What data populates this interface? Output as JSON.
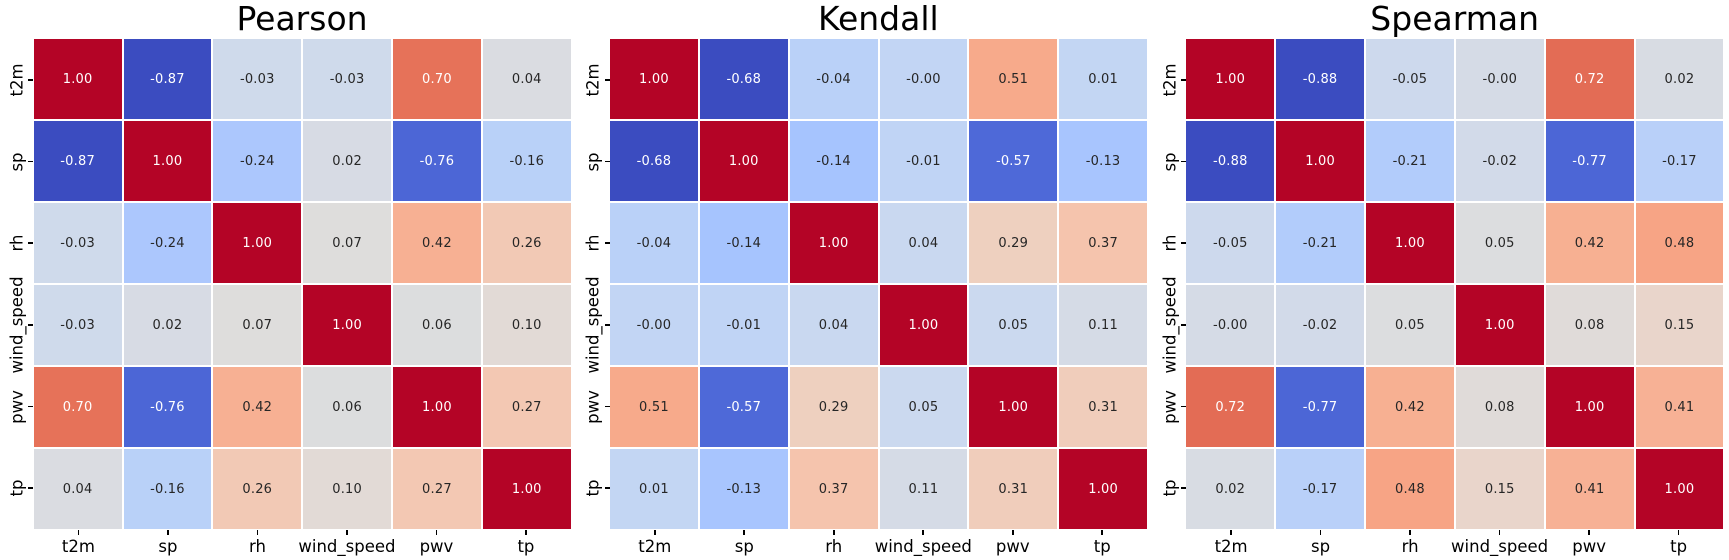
{
  "figure": {
    "background": "#ffffff",
    "colormap": "coolwarm",
    "colormap_min_color": "#3b4cc0",
    "colormap_mid_color": "#dddddd",
    "colormap_max_color": "#b40426",
    "annotation_dark_text": "#262626",
    "annotation_light_text": "#ffffff",
    "gridline_color": "#ffffff",
    "tick_color": "#000000",
    "annotation_format": "two-decimal"
  },
  "chart_data": [
    {
      "type": "heatmap",
      "title": "Pearson",
      "categories": [
        "t2m",
        "sp",
        "rh",
        "wind_speed",
        "pwv",
        "tp"
      ],
      "matrix": [
        [
          "1.00",
          "-0.87",
          "-0.03",
          "-0.03",
          "0.70",
          "0.04"
        ],
        [
          "-0.87",
          "1.00",
          "-0.24",
          "0.02",
          "-0.76",
          "-0.16"
        ],
        [
          "-0.03",
          "-0.24",
          "1.00",
          "0.07",
          "0.42",
          "0.26"
        ],
        [
          "-0.03",
          "0.02",
          "0.07",
          "1.00",
          "0.06",
          "0.10"
        ],
        [
          "0.70",
          "-0.76",
          "0.42",
          "0.06",
          "1.00",
          "0.27"
        ],
        [
          "0.04",
          "-0.16",
          "0.26",
          "0.10",
          "0.27",
          "1.00"
        ]
      ]
    },
    {
      "type": "heatmap",
      "title": "Kendall",
      "categories": [
        "t2m",
        "sp",
        "rh",
        "wind_speed",
        "pwv",
        "tp"
      ],
      "matrix": [
        [
          "1.00",
          "-0.68",
          "-0.04",
          "-0.00",
          "0.51",
          "0.01"
        ],
        [
          "-0.68",
          "1.00",
          "-0.14",
          "-0.01",
          "-0.57",
          "-0.13"
        ],
        [
          "-0.04",
          "-0.14",
          "1.00",
          "0.04",
          "0.29",
          "0.37"
        ],
        [
          "-0.00",
          "-0.01",
          "0.04",
          "1.00",
          "0.05",
          "0.11"
        ],
        [
          "0.51",
          "-0.57",
          "0.29",
          "0.05",
          "1.00",
          "0.31"
        ],
        [
          "0.01",
          "-0.13",
          "0.37",
          "0.11",
          "0.31",
          "1.00"
        ]
      ]
    },
    {
      "type": "heatmap",
      "title": "Spearman",
      "categories": [
        "t2m",
        "sp",
        "rh",
        "wind_speed",
        "pwv",
        "tp"
      ],
      "matrix": [
        [
          "1.00",
          "-0.88",
          "-0.05",
          "-0.00",
          "0.72",
          "0.02"
        ],
        [
          "-0.88",
          "1.00",
          "-0.21",
          "-0.02",
          "-0.77",
          "-0.17"
        ],
        [
          "-0.05",
          "-0.21",
          "1.00",
          "0.05",
          "0.42",
          "0.48"
        ],
        [
          "-0.00",
          "-0.02",
          "0.05",
          "1.00",
          "0.08",
          "0.15"
        ],
        [
          "0.72",
          "-0.77",
          "0.42",
          "0.08",
          "1.00",
          "0.41"
        ],
        [
          "0.02",
          "-0.17",
          "0.48",
          "0.15",
          "0.41",
          "1.00"
        ]
      ]
    }
  ]
}
